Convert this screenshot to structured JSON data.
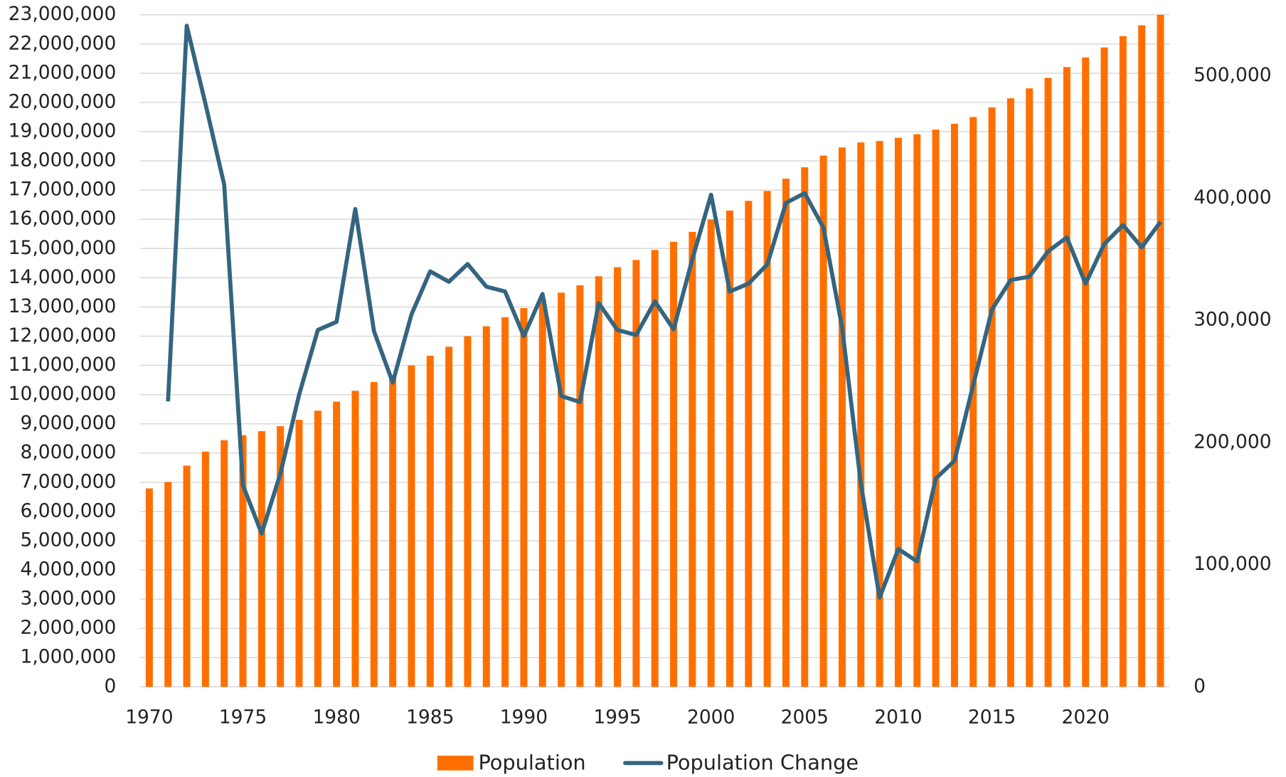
{
  "chart_data": {
    "type": "bar_line",
    "x": [
      1970,
      1971,
      1972,
      1973,
      1974,
      1975,
      1976,
      1977,
      1978,
      1979,
      1980,
      1981,
      1982,
      1983,
      1984,
      1985,
      1986,
      1987,
      1988,
      1989,
      1990,
      1991,
      1992,
      1993,
      1994,
      1995,
      1996,
      1997,
      1998,
      1999,
      2000,
      2001,
      2002,
      2003,
      2004,
      2005,
      2006,
      2007,
      2008,
      2009,
      2010,
      2011,
      2012,
      2013,
      2014,
      2015,
      2016,
      2017,
      2018,
      2019,
      2020,
      2021,
      2022,
      2023,
      2024
    ],
    "series": [
      {
        "name": "Population",
        "type": "bar",
        "color": "#ff6f00",
        "values": [
          6790000,
          7010000,
          7570000,
          8050000,
          8440000,
          8610000,
          8750000,
          8920000,
          9140000,
          9450000,
          9760000,
          10130000,
          10430000,
          10660000,
          11000000,
          11330000,
          11640000,
          12000000,
          12340000,
          12650000,
          12960000,
          13270000,
          13490000,
          13740000,
          14050000,
          14360000,
          14610000,
          14950000,
          15230000,
          15570000,
          15990000,
          16300000,
          16630000,
          16970000,
          17390000,
          17780000,
          18180000,
          18460000,
          18630000,
          18680000,
          18790000,
          18910000,
          19070000,
          19270000,
          19500000,
          19830000,
          20140000,
          20480000,
          20840000,
          21210000,
          21540000,
          21880000,
          22270000,
          22640000,
          23000000
        ]
      },
      {
        "name": "Population Change",
        "type": "line",
        "axis": "y2",
        "color": "#346580",
        "values": [
          null,
          233600,
          541000,
          477000,
          411000,
          165000,
          125500,
          174500,
          239000,
          292000,
          298700,
          391000,
          291000,
          249000,
          304700,
          340000,
          331500,
          346000,
          327500,
          323500,
          287000,
          321500,
          238000,
          233000,
          314000,
          292000,
          288000,
          315400,
          292600,
          350000,
          402700,
          323500,
          330000,
          345600,
          396000,
          404000,
          375800,
          294000,
          166400,
          73000,
          112800,
          102700,
          170500,
          185000,
          247000,
          308700,
          333000,
          335600,
          356400,
          367800,
          330000,
          362400,
          377900,
          359700,
          380500
        ]
      }
    ],
    "xlim": [
      1969.5,
      2024.5
    ],
    "xticks": [
      1970,
      1975,
      1980,
      1985,
      1990,
      1995,
      2000,
      2005,
      2010,
      2015,
      2020
    ],
    "ylim": [
      0,
      23000000
    ],
    "yticks": [
      0,
      {
        "value": 1000000,
        "label": "1,000,000"
      },
      {
        "value": 2000000,
        "label": "2,000,000"
      },
      {
        "value": 3000000,
        "label": "3,000,000"
      },
      {
        "value": 4000000,
        "label": "4,000,000"
      },
      {
        "value": 5000000,
        "label": "5,000,000"
      },
      {
        "value": 6000000,
        "label": "6,000,000"
      },
      {
        "value": 7000000,
        "label": "7,000,000"
      },
      {
        "value": 8000000,
        "label": "8,000,000"
      },
      {
        "value": 9000000,
        "label": "9,000,000"
      },
      {
        "value": 10000000,
        "label": "10,000,000"
      },
      {
        "value": 11000000,
        "label": "11,000,000"
      },
      {
        "value": 12000000,
        "label": "12,000,000"
      },
      {
        "value": 13000000,
        "label": "13,000,000"
      },
      {
        "value": 14000000,
        "label": "14,000,000"
      },
      {
        "value": 15000000,
        "label": "15,000,000"
      },
      {
        "value": 16000000,
        "label": "16,000,000"
      },
      {
        "value": 17000000,
        "label": "17,000,000"
      },
      {
        "value": 18000000,
        "label": "18,000,000"
      },
      {
        "value": 19000000,
        "label": "19,000,000"
      },
      {
        "value": 20000000,
        "label": "20,000,000"
      },
      {
        "value": 21000000,
        "label": "21,000,000"
      },
      {
        "value": 22000000,
        "label": "22,000,000"
      },
      {
        "value": 23000000,
        "label": "23,000,000"
      }
    ],
    "y2lim": [
      0,
      550000
    ],
    "y2ticks": [
      0,
      {
        "value": 100000,
        "label": "100,000"
      },
      {
        "value": 200000,
        "label": "200,000"
      },
      {
        "value": 300000,
        "label": "300,000"
      },
      {
        "value": 400000,
        "label": "400,000"
      },
      {
        "value": 500000,
        "label": "500,000"
      }
    ],
    "grid": true,
    "legend": "bottom"
  }
}
